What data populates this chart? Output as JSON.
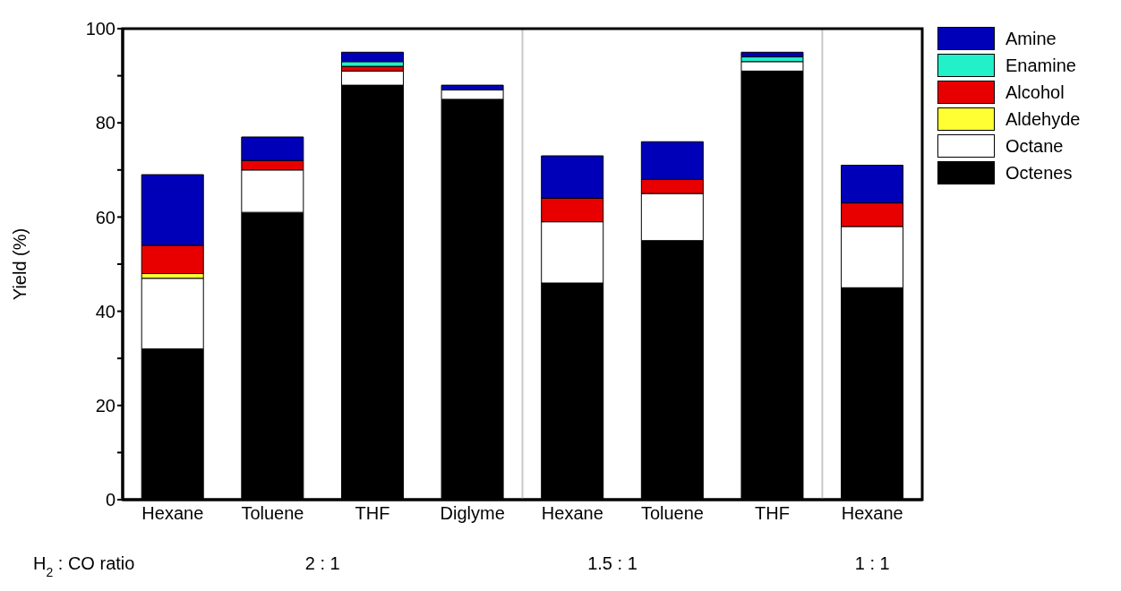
{
  "chart_data": {
    "type": "bar",
    "stacked": true,
    "ylabel": "Yield (%)",
    "categories": [
      "Hexane",
      "Toluene",
      "THF",
      "Diglyme",
      "Hexane",
      "Toluene",
      "THF",
      "Hexane"
    ],
    "series": [
      {
        "name": "Octenes",
        "color": "#000000",
        "values": [
          32,
          61,
          88,
          85,
          46,
          55,
          91,
          45
        ]
      },
      {
        "name": "Octane",
        "color": "#ffffff",
        "values": [
          15,
          9,
          3,
          2,
          13,
          10,
          2,
          13
        ]
      },
      {
        "name": "Aldehyde",
        "color": "#ffff33",
        "values": [
          1,
          0,
          0,
          0,
          0,
          0,
          0,
          0
        ]
      },
      {
        "name": "Alcohol",
        "color": "#e80000",
        "values": [
          6,
          2,
          1,
          0,
          5,
          3,
          0,
          5
        ]
      },
      {
        "name": "Enamine",
        "color": "#22f0c8",
        "values": [
          0,
          0,
          1,
          0,
          0,
          0,
          1,
          0
        ]
      },
      {
        "name": "Amine",
        "color": "#0000b8",
        "values": [
          15,
          5,
          2,
          1,
          9,
          8,
          1,
          8
        ]
      }
    ],
    "ylim": [
      0,
      100
    ],
    "yticks": [
      0,
      {
        "value": 10,
        "label": null
      },
      20,
      {
        "value": 30,
        "label": null
      },
      40,
      {
        "value": 50,
        "label": null
      },
      60,
      {
        "value": 70,
        "label": null
      },
      80,
      {
        "value": 90,
        "label": null
      },
      100
    ],
    "legend": "right",
    "annotations": [
      "H$_{2}$ : CO ratio",
      "2 : 1",
      "1.5 : 1",
      "1 : 1"
    ]
  }
}
